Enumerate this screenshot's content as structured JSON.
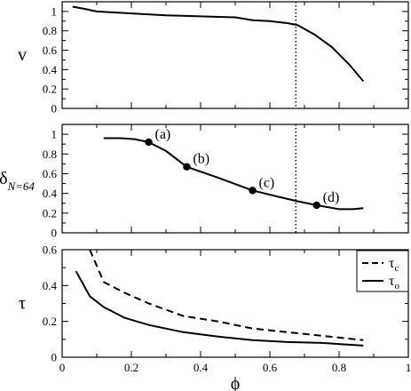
{
  "chart_data": [
    {
      "type": "line",
      "ylabel": "v",
      "xlim": [
        0,
        1
      ],
      "ylim": [
        0,
        1.1
      ],
      "yticks": [
        "0",
        "0.2",
        "0.4",
        "0.6",
        "0.8",
        "1"
      ],
      "series": [
        {
          "style": "solid",
          "x": [
            0.03,
            0.06,
            0.1,
            0.2,
            0.3,
            0.4,
            0.5,
            0.55,
            0.6,
            0.65,
            0.68,
            0.73,
            0.78,
            0.83,
            0.87
          ],
          "y": [
            1.05,
            1.03,
            1.0,
            0.98,
            0.96,
            0.95,
            0.94,
            0.91,
            0.9,
            0.88,
            0.86,
            0.76,
            0.63,
            0.45,
            0.28
          ]
        }
      ],
      "vline": {
        "x": 0.675,
        "style": "dotted"
      }
    },
    {
      "type": "line",
      "ylabel": "δN=64",
      "ylabel_main": "δ",
      "ylabel_sub": "N=64",
      "xlim": [
        0,
        1
      ],
      "ylim": [
        0,
        1.1
      ],
      "yticks": [
        "0",
        "0.2",
        "0.4",
        "0.6",
        "0.8",
        "1"
      ],
      "series": [
        {
          "style": "solid",
          "x": [
            0.12,
            0.17,
            0.21,
            0.25,
            0.3,
            0.36,
            0.45,
            0.55,
            0.62,
            0.68,
            0.735,
            0.8,
            0.84,
            0.87
          ],
          "y": [
            0.96,
            0.96,
            0.95,
            0.92,
            0.83,
            0.67,
            0.56,
            0.43,
            0.37,
            0.32,
            0.28,
            0.24,
            0.24,
            0.25
          ]
        }
      ],
      "markers": [
        {
          "label": "(a)",
          "x": 0.25,
          "y": 0.92
        },
        {
          "label": "(b)",
          "x": 0.36,
          "y": 0.67
        },
        {
          "label": "(c)",
          "x": 0.55,
          "y": 0.43
        },
        {
          "label": "(d)",
          "x": 0.735,
          "y": 0.28
        }
      ],
      "vline": {
        "x": 0.675,
        "style": "dotted"
      }
    },
    {
      "type": "line",
      "ylabel": "τ",
      "xlabel": "ϕ",
      "xlim": [
        0,
        1
      ],
      "ylim": [
        0,
        0.6
      ],
      "yticks": [
        "0",
        "0.2",
        "0.4",
        "0.6"
      ],
      "xticks": [
        "0",
        "0.2",
        "0.4",
        "0.6",
        "0.8",
        "1"
      ],
      "legend_position": "top-right",
      "series": [
        {
          "name": "τc",
          "name_main": "τ",
          "name_sub": "c",
          "style": "dashed",
          "x": [
            0.08,
            0.12,
            0.18,
            0.25,
            0.35,
            0.45,
            0.55,
            0.65,
            0.75,
            0.87
          ],
          "y": [
            0.6,
            0.42,
            0.36,
            0.3,
            0.23,
            0.2,
            0.16,
            0.14,
            0.12,
            0.095
          ]
        },
        {
          "name": "τo",
          "name_main": "τ",
          "name_sub": "o",
          "style": "solid",
          "x": [
            0.04,
            0.08,
            0.12,
            0.18,
            0.25,
            0.35,
            0.45,
            0.55,
            0.65,
            0.75,
            0.87
          ],
          "y": [
            0.48,
            0.34,
            0.28,
            0.22,
            0.18,
            0.14,
            0.115,
            0.095,
            0.085,
            0.08,
            0.065
          ]
        }
      ]
    }
  ]
}
